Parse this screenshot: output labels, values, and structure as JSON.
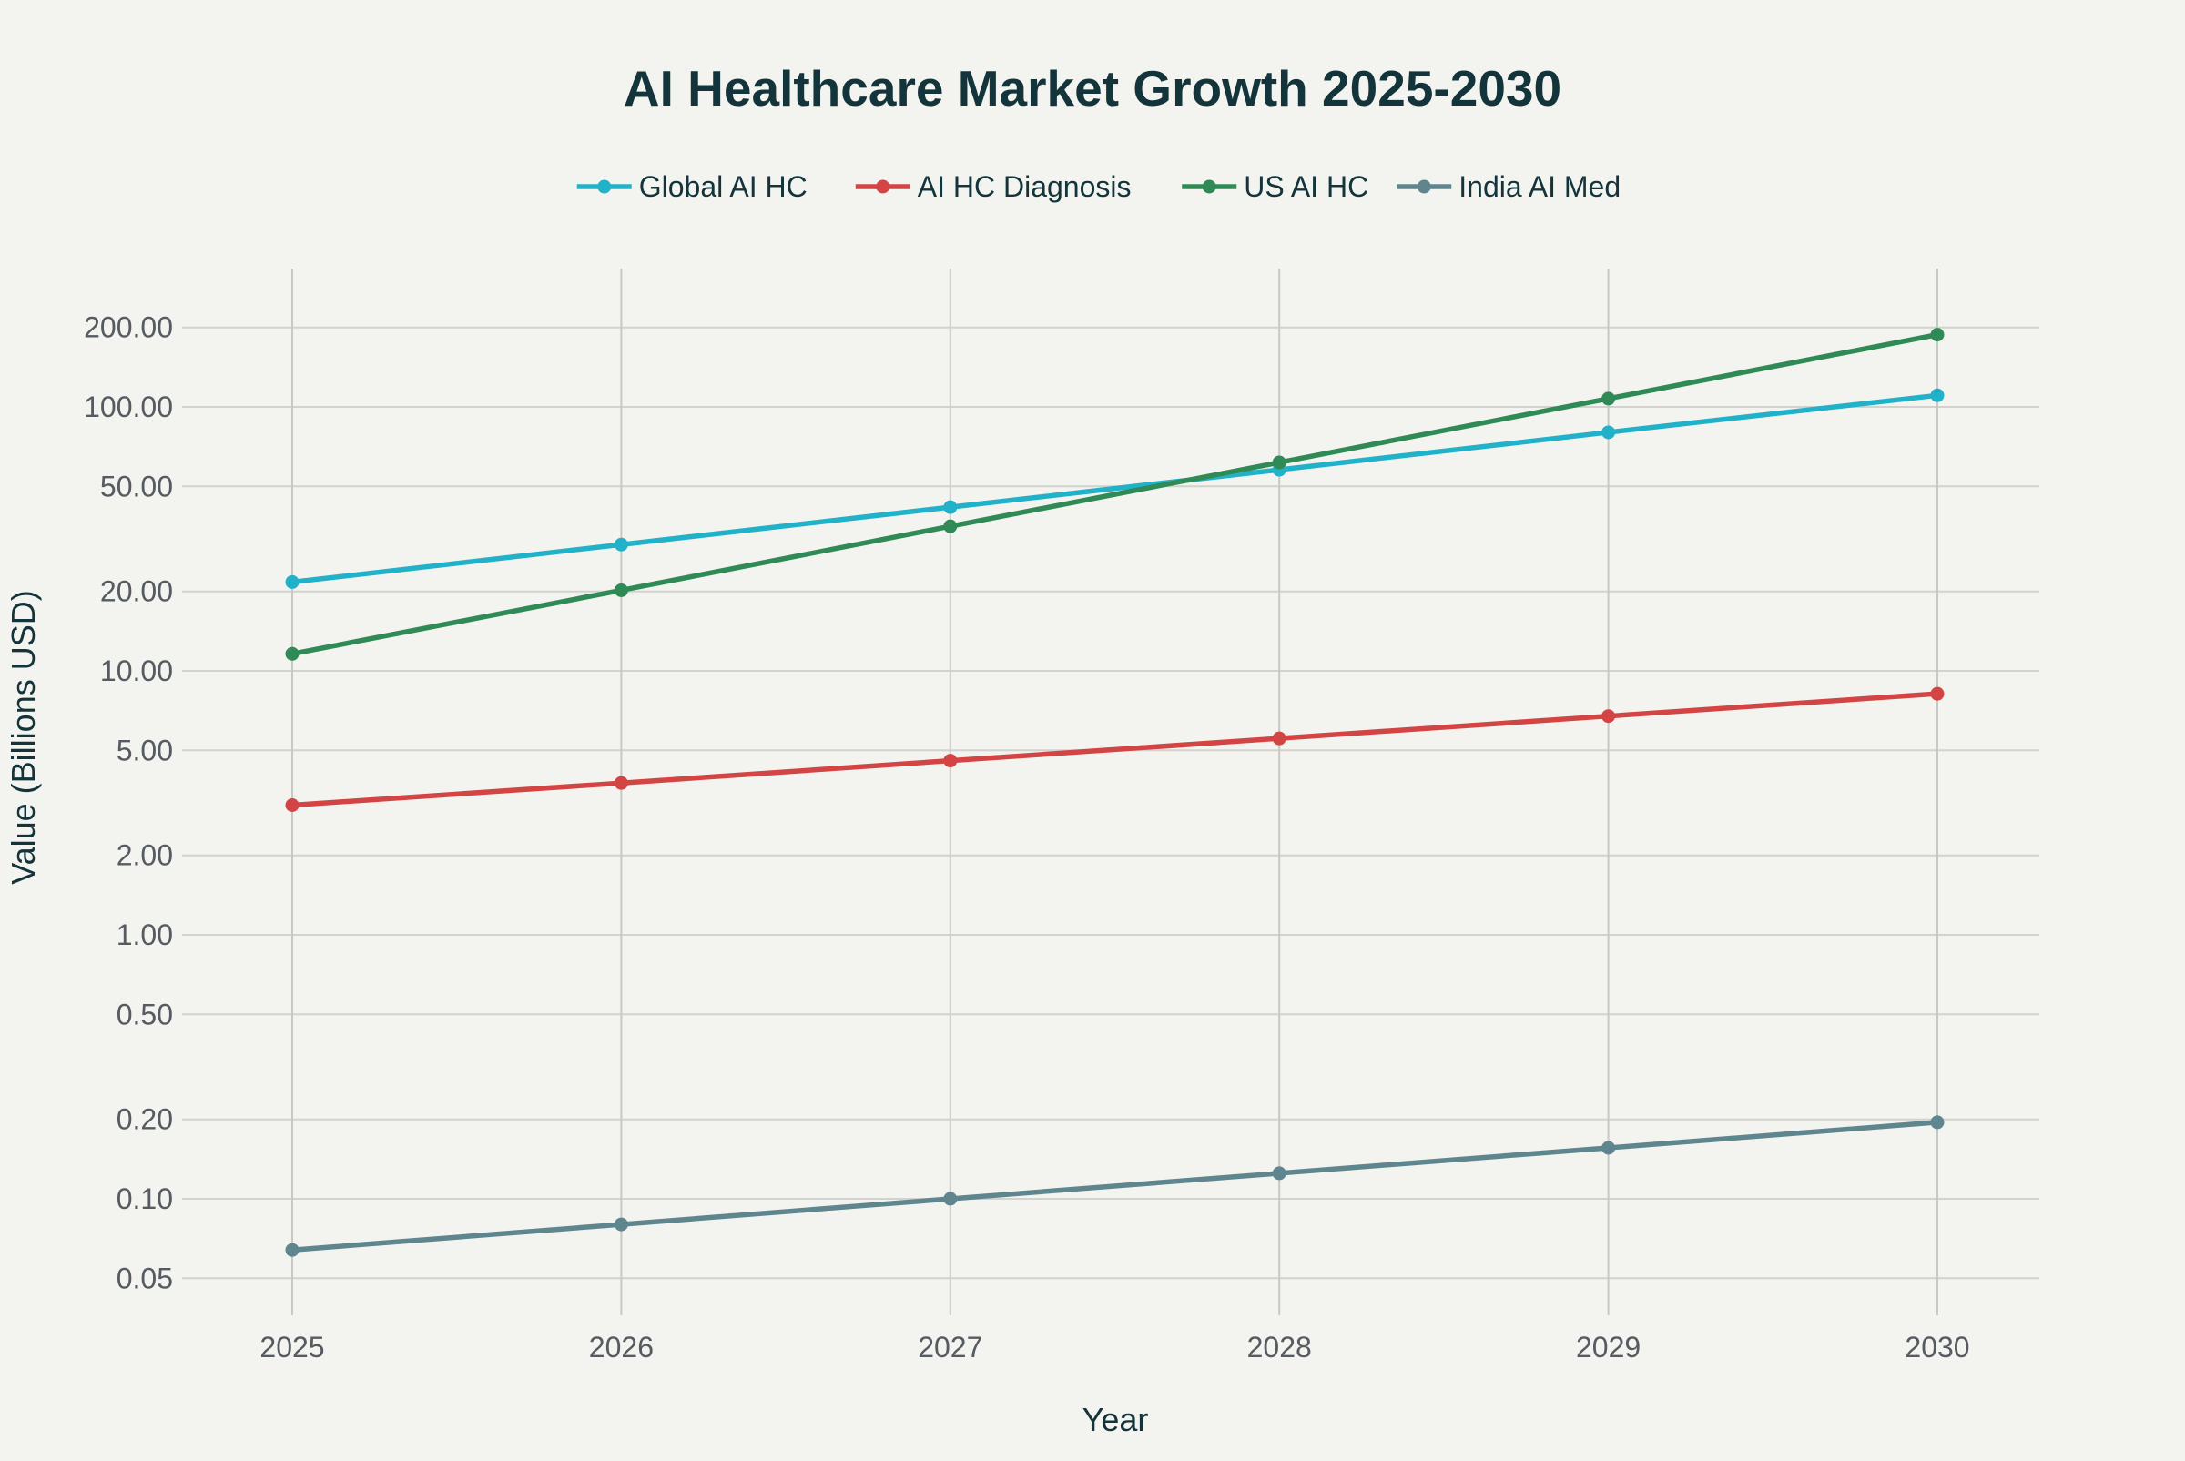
{
  "chart_data": {
    "type": "line",
    "title": "AI Healthcare Market Growth 2025-2030",
    "xlabel": "Year",
    "ylabel": "Value (Billions USD)",
    "yscale": "log",
    "ylim": [
      0.04,
      330
    ],
    "x": [
      "2025",
      "2026",
      "2027",
      "2028",
      "2029",
      "2030"
    ],
    "y_ticks": [
      {
        "value": 200,
        "label": "200.00"
      },
      {
        "value": 100,
        "label": "100.00"
      },
      {
        "value": 50,
        "label": "50.00"
      },
      {
        "value": 20,
        "label": "20.00"
      },
      {
        "value": 10,
        "label": "10.00"
      },
      {
        "value": 5,
        "label": "5.00"
      },
      {
        "value": 2,
        "label": "2.00"
      },
      {
        "value": 1,
        "label": "1.00"
      },
      {
        "value": 0.5,
        "label": "0.50"
      },
      {
        "value": 0.2,
        "label": "0.20"
      },
      {
        "value": 0.1,
        "label": "0.10"
      },
      {
        "value": 0.05,
        "label": "0.05"
      }
    ],
    "legend_position": "top-center",
    "grid": true,
    "series": [
      {
        "name": "Global AI HC",
        "color": "#21b2c9",
        "values": [
          21.7,
          30.1,
          41.7,
          57.8,
          80.1,
          110.6
        ]
      },
      {
        "name": "AI HC Diagnosis",
        "color": "#d34545",
        "values": [
          3.1,
          3.76,
          4.57,
          5.55,
          6.74,
          8.19
        ]
      },
      {
        "name": "US AI HC",
        "color": "#2f8a56",
        "values": [
          11.6,
          20.2,
          35.3,
          61.6,
          107.5,
          187.8
        ]
      },
      {
        "name": "India AI Med",
        "color": "#5f868e",
        "values": [
          0.064,
          0.08,
          0.1,
          0.125,
          0.156,
          0.195
        ]
      }
    ]
  }
}
